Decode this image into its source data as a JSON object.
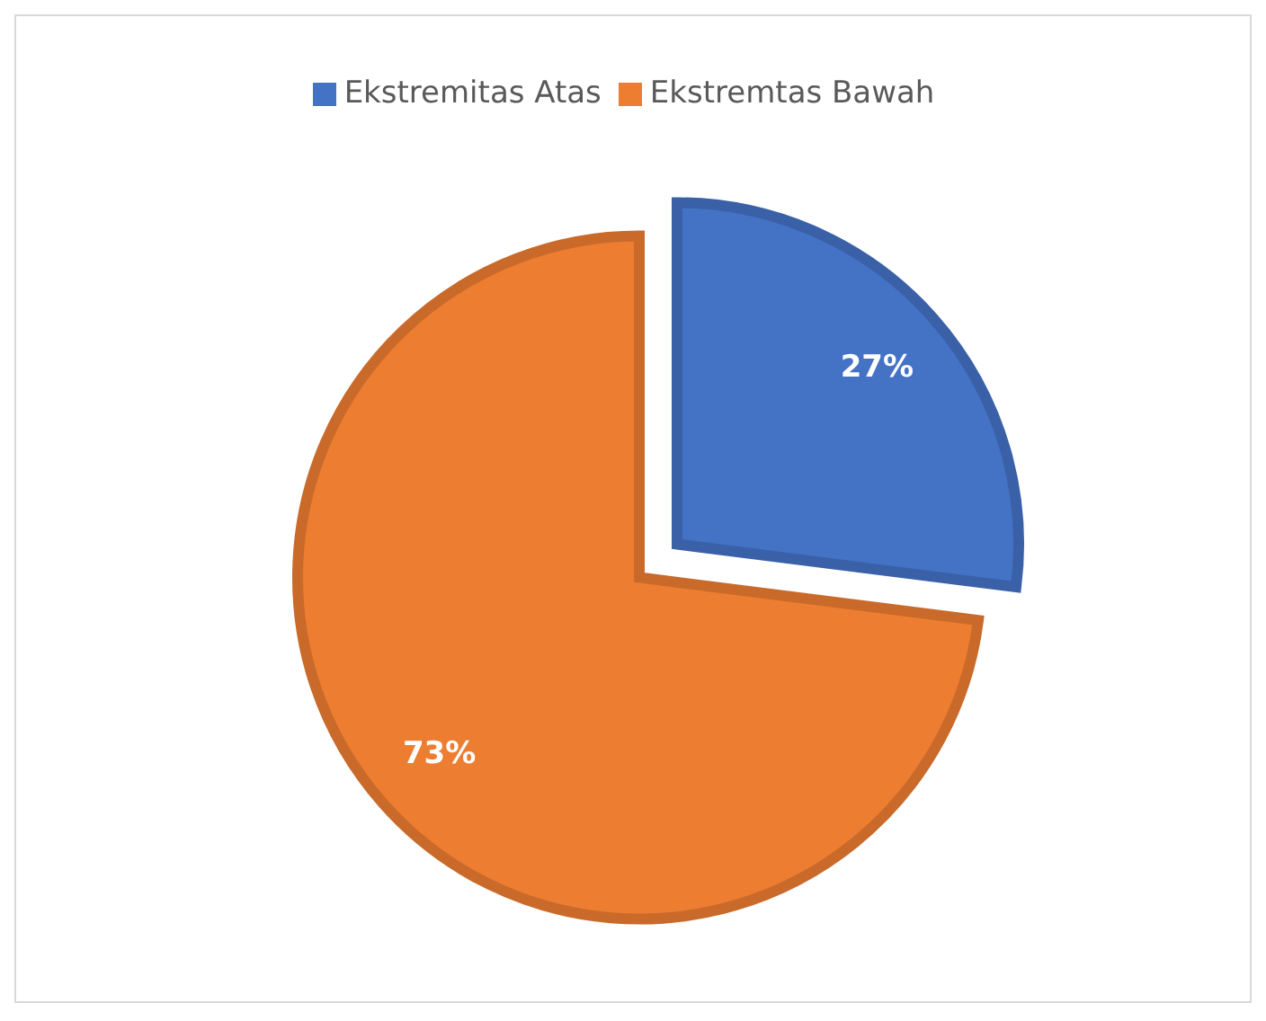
{
  "chart_data": {
    "type": "pie",
    "categories": [
      "Ekstremitas Atas",
      "Ekstremtas Bawah"
    ],
    "values": [
      27,
      73
    ],
    "colors": [
      "#4472c4",
      "#ed7d31"
    ],
    "value_labels": [
      "27%",
      "73%"
    ],
    "legend": "top"
  }
}
